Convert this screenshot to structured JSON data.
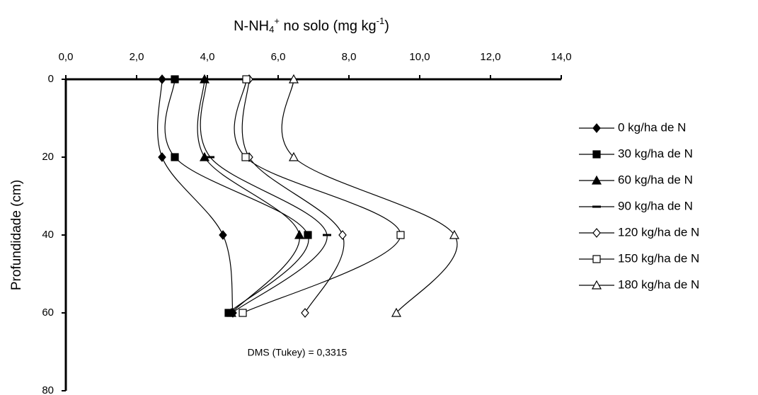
{
  "chart_data": {
    "type": "line",
    "title": [
      {
        "text": "N-NH",
        "style": "normal"
      },
      {
        "text": "4",
        "style": "sub"
      },
      {
        "text": "+",
        "style": "sup"
      },
      {
        "text": " no solo (mg kg",
        "style": "normal"
      },
      {
        "text": "-1",
        "style": "sup"
      },
      {
        "text": ")",
        "style": "normal"
      }
    ],
    "y_label": "Profundidade (cm)",
    "annotation": "DMS (Tukey) = 0,3315",
    "depths": [
      0,
      20,
      40,
      60
    ],
    "xlim": [
      0,
      14
    ],
    "xticks": [
      {
        "value": 0,
        "label": "0,0"
      },
      {
        "value": 2,
        "label": "2,0"
      },
      {
        "value": 4,
        "label": "4,0"
      },
      {
        "value": 6,
        "label": "6,0"
      },
      {
        "value": 8,
        "label": "8,0"
      },
      {
        "value": 10,
        "label": "10,0"
      },
      {
        "value": 12,
        "label": "12,0"
      },
      {
        "value": 14,
        "label": "14,0"
      }
    ],
    "ylim": [
      0,
      80
    ],
    "yticks": [
      0,
      20,
      40,
      60,
      80
    ],
    "legend": "right",
    "series": [
      {
        "name": "0 kg/ha de N",
        "color": "#000000",
        "marker": "diamond",
        "filled": true,
        "values": [
          2.72,
          2.72,
          4.44,
          4.72
        ]
      },
      {
        "name": "30 kg/ha de N",
        "color": "#000000",
        "marker": "square",
        "filled": true,
        "values": [
          3.08,
          3.08,
          6.84,
          4.6
        ]
      },
      {
        "name": "60 kg/ha de N",
        "color": "#000000",
        "marker": "triangle",
        "filled": true,
        "values": [
          3.92,
          3.92,
          6.6,
          4.68
        ]
      },
      {
        "name": "90 kg/ha de N",
        "color": "#000000",
        "marker": "dash",
        "filled": true,
        "values": [
          3.98,
          4.08,
          7.38,
          4.7
        ]
      },
      {
        "name": "120 kg/ha de N",
        "color": "#000000",
        "marker": "diamond",
        "filled": false,
        "values": [
          5.18,
          5.18,
          7.82,
          6.76
        ]
      },
      {
        "name": "150 kg/ha de N",
        "color": "#000000",
        "marker": "square",
        "filled": false,
        "values": [
          5.1,
          5.08,
          9.46,
          5.0
        ]
      },
      {
        "name": "180 kg/ha de N",
        "color": "#000000",
        "marker": "triangle",
        "filled": false,
        "values": [
          6.44,
          6.44,
          10.98,
          9.34
        ]
      }
    ]
  }
}
